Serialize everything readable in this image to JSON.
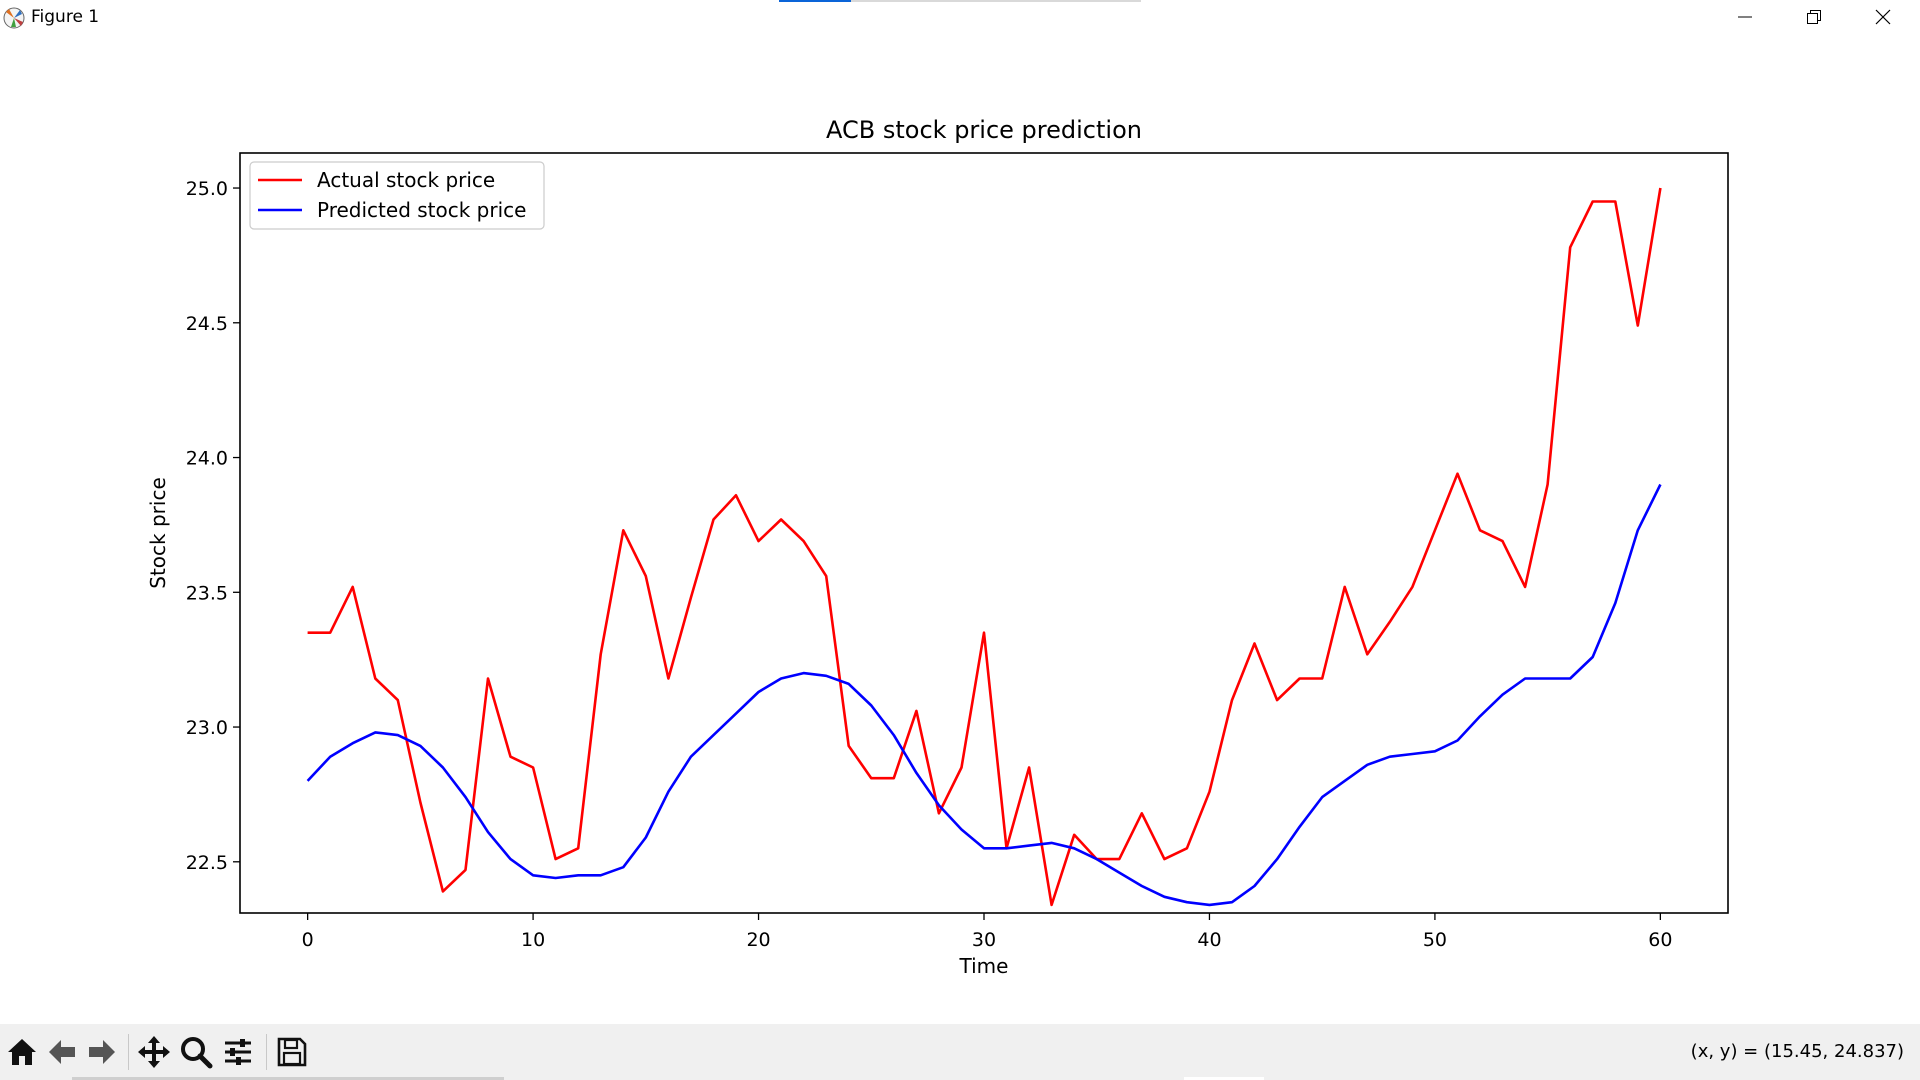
{
  "window": {
    "title": "Figure 1",
    "icon": "matplotlib-icon",
    "controls": [
      "minimize-icon",
      "restore-icon",
      "close-icon"
    ]
  },
  "toolbar": {
    "tools": [
      "home-icon",
      "back-arrow-icon",
      "forward-arrow-icon",
      "pan-icon",
      "zoom-icon",
      "configure-subplots-icon",
      "save-icon"
    ],
    "coordinates": "(x, y) = (15.45, 24.837)"
  },
  "colors": {
    "actual": "#ff0000",
    "predicted": "#0000ff",
    "toolbar_bg": "#f0f0f0"
  },
  "chart_data": {
    "type": "line",
    "title": "ACB stock price prediction",
    "xlabel": "Time",
    "ylabel": "Stock price",
    "xlim": [
      -3,
      63
    ],
    "ylim": [
      22.31,
      25.13
    ],
    "xticks": [
      0,
      10,
      20,
      30,
      40,
      50,
      60
    ],
    "xtick_labels": [
      "0",
      "10",
      "20",
      "30",
      "40",
      "50",
      "60"
    ],
    "yticks": [
      22.5,
      23.0,
      23.5,
      24.0,
      24.5,
      25.0
    ],
    "ytick_labels": [
      "22.5",
      "23.0",
      "23.5",
      "24.0",
      "24.5",
      "25.0"
    ],
    "grid": false,
    "legend": "upper left",
    "x": [
      0,
      1,
      2,
      3,
      4,
      5,
      6,
      7,
      8,
      9,
      10,
      11,
      12,
      13,
      14,
      15,
      16,
      17,
      18,
      19,
      20,
      21,
      22,
      23,
      24,
      25,
      26,
      27,
      28,
      29,
      30,
      31,
      32,
      33,
      34,
      35,
      36,
      37,
      38,
      39,
      40,
      41,
      42,
      43,
      44,
      45,
      46,
      47,
      48,
      49,
      50,
      51,
      52,
      53,
      54,
      55,
      56,
      57,
      58,
      59,
      60
    ],
    "series": [
      {
        "name": "Actual stock price",
        "color": "#ff0000",
        "values": [
          23.35,
          23.35,
          23.52,
          23.18,
          23.1,
          22.72,
          22.39,
          22.47,
          23.18,
          22.89,
          22.85,
          22.51,
          22.55,
          23.27,
          23.73,
          23.56,
          23.18,
          23.48,
          23.77,
          23.86,
          23.69,
          23.77,
          23.69,
          23.56,
          22.93,
          22.81,
          22.81,
          23.06,
          22.68,
          22.85,
          23.35,
          22.55,
          22.85,
          22.34,
          22.6,
          22.51,
          22.51,
          22.68,
          22.51,
          22.55,
          22.76,
          23.1,
          23.31,
          23.1,
          23.18,
          23.18,
          23.52,
          23.27,
          23.39,
          23.52,
          23.73,
          23.94,
          23.73,
          23.69,
          23.52,
          23.9,
          24.78,
          24.95,
          24.95,
          24.49,
          25.0
        ]
      },
      {
        "name": "Predicted stock price",
        "color": "#0000ff",
        "values": [
          22.8,
          22.89,
          22.94,
          22.98,
          22.97,
          22.93,
          22.85,
          22.74,
          22.61,
          22.51,
          22.45,
          22.44,
          22.45,
          22.45,
          22.48,
          22.59,
          22.76,
          22.89,
          22.97,
          23.05,
          23.13,
          23.18,
          23.2,
          23.19,
          23.16,
          23.08,
          22.97,
          22.83,
          22.71,
          22.62,
          22.55,
          22.55,
          22.56,
          22.57,
          22.55,
          22.51,
          22.46,
          22.41,
          22.37,
          22.35,
          22.34,
          22.35,
          22.41,
          22.51,
          22.63,
          22.74,
          22.8,
          22.86,
          22.89,
          22.9,
          22.91,
          22.95,
          23.04,
          23.12,
          23.18,
          23.18,
          23.18,
          23.26,
          23.46,
          23.73,
          23.9
        ]
      }
    ]
  }
}
